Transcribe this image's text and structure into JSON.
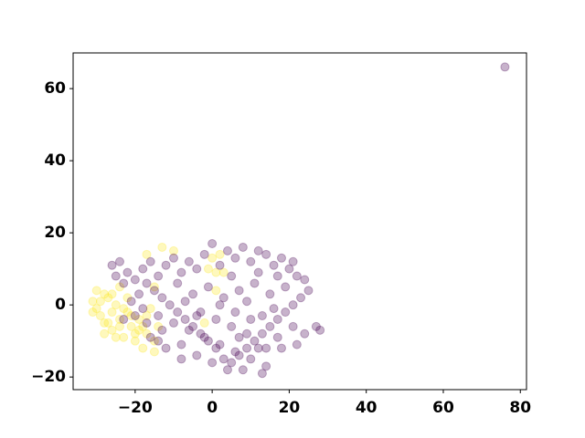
{
  "chart_data": {
    "type": "scatter",
    "opacity": 0.3,
    "xlim": [
      -36.1,
      81.6
    ],
    "ylim": [
      -23.5,
      69.9
    ],
    "xticks": [
      {
        "value": -20,
        "label": "−20"
      },
      0,
      20,
      40,
      60,
      80
    ],
    "yticks": [
      {
        "value": -20,
        "label": "−20"
      },
      0,
      20,
      40,
      60
    ],
    "series": [
      {
        "color": "#fde725",
        "x": [
          -31,
          -30,
          -29,
          -28,
          -27,
          -26,
          -25,
          -24,
          -23,
          -22,
          -21,
          -20,
          -19,
          -18,
          -17,
          -16,
          -15,
          -14,
          -30,
          -28,
          -26,
          -24,
          -22,
          -20,
          -18,
          -25,
          -27,
          -29,
          -23,
          -21,
          -19,
          -17,
          -15,
          -13,
          -10,
          -17,
          -1,
          1,
          2,
          0,
          3,
          -2,
          1,
          -15,
          -24,
          -26,
          -31,
          -28
        ],
        "y": [
          1,
          4,
          -3,
          -5,
          2,
          -7,
          0,
          5,
          -9,
          -2,
          -6,
          -10,
          -4,
          -12,
          -8,
          -1,
          -13,
          -6,
          -1,
          3,
          -2,
          -4,
          2,
          -8,
          -6,
          -9,
          -5,
          1,
          -1,
          -3,
          -7,
          -3,
          -10,
          16,
          15,
          14,
          10,
          9,
          14,
          13,
          9,
          -5,
          4,
          5,
          -6,
          3,
          -2,
          -8
        ]
      },
      {
        "color": "#440154",
        "x": [
          -26,
          -24,
          -22,
          -20,
          -18,
          -16,
          -14,
          -12,
          -10,
          -8,
          -6,
          -4,
          -2,
          0,
          2,
          4,
          6,
          8,
          10,
          12,
          14,
          16,
          18,
          20,
          22,
          24,
          25,
          23,
          21,
          19,
          17,
          15,
          13,
          11,
          9,
          7,
          5,
          3,
          1,
          -1,
          -3,
          -5,
          -7,
          -9,
          -11,
          -13,
          -15,
          -17,
          -19,
          -21,
          -18,
          -14,
          -10,
          -6,
          -2,
          2,
          6,
          10,
          14,
          13,
          8,
          4,
          0,
          -4,
          -8,
          -12,
          -16,
          -17,
          -20,
          -23,
          -14,
          -8,
          -3,
          1,
          5,
          9,
          13,
          17,
          21,
          24,
          27,
          28,
          22,
          18,
          12,
          7,
          3,
          7,
          11,
          15,
          19,
          -1,
          -5,
          -9,
          -13,
          5,
          9,
          14,
          16,
          -7,
          10,
          6,
          2,
          -4,
          17,
          21,
          12,
          -23,
          -25,
          76
        ],
        "y": [
          11,
          12,
          9,
          7,
          10,
          12,
          8,
          11,
          13,
          9,
          12,
          10,
          14,
          17,
          11,
          15,
          13,
          16,
          12,
          15,
          14,
          11,
          13,
          10,
          8,
          7,
          4,
          2,
          0,
          -2,
          -4,
          -6,
          -8,
          -10,
          -12,
          -14,
          -16,
          -15,
          -12,
          -10,
          -8,
          -6,
          -4,
          -2,
          0,
          2,
          4,
          6,
          3,
          1,
          -1,
          -3,
          -5,
          -7,
          -9,
          -11,
          -13,
          -15,
          -17,
          -19,
          -18,
          -18,
          -16,
          -14,
          -15,
          -12,
          -9,
          -5,
          -3,
          -4,
          -10,
          -11,
          -2,
          -4,
          -6,
          -8,
          -3,
          -9,
          -6,
          -8,
          -6,
          -7,
          -11,
          -12,
          -12,
          -9,
          2,
          4,
          6,
          3,
          5,
          5,
          3,
          6,
          -7,
          8,
          1,
          -12,
          -1,
          1,
          -4,
          -2,
          0,
          -3,
          8,
          12,
          9,
          6,
          8,
          66
        ]
      }
    ]
  }
}
